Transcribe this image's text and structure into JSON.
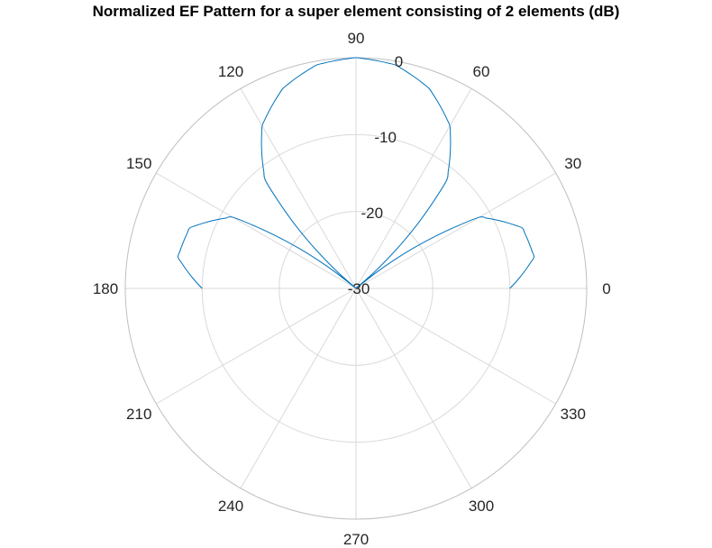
{
  "chart_data": {
    "type": "polar-line",
    "title": "Normalized EF Pattern for a super element consisting of 2 elements (dB)",
    "theta_unit": "degrees",
    "theta_ticks": [
      0,
      30,
      60,
      90,
      120,
      150,
      180,
      210,
      240,
      270,
      300,
      330
    ],
    "r_ticks": [
      -30,
      -20,
      -10,
      0
    ],
    "r_lim": [
      -30,
      0
    ],
    "grid": true,
    "series": [
      {
        "color": "#0072BD",
        "theta": [
          0,
          10,
          20,
          30,
          40,
          50,
          60,
          70,
          80,
          90,
          100,
          110,
          120,
          130,
          140,
          150,
          160,
          170,
          180
        ],
        "r": [
          -10,
          -6.5,
          -7,
          -11.5,
          -30,
          -11.7,
          -5.6,
          -2.3,
          -0.5,
          0,
          -0.5,
          -2.3,
          -5.6,
          -11.7,
          -30,
          -11.5,
          -7,
          -6.5,
          -10
        ]
      }
    ]
  },
  "colors": {
    "grid": "#d9d9d9",
    "outer_circle": "#bfbfbf",
    "series": "#0072BD"
  }
}
